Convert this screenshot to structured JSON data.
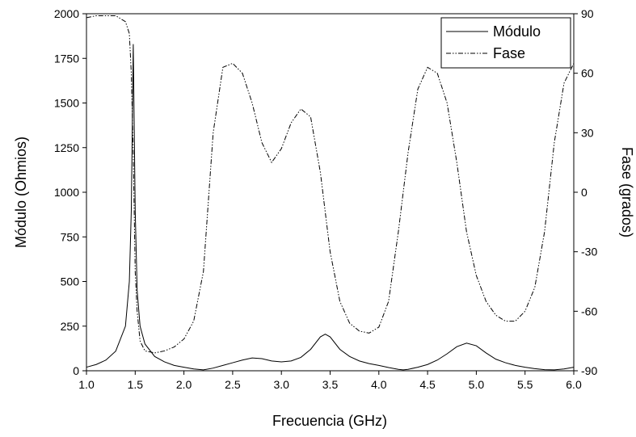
{
  "chart_data": {
    "type": "line",
    "x": [
      1.0,
      1.1,
      1.2,
      1.3,
      1.4,
      1.44,
      1.46,
      1.48,
      1.5,
      1.52,
      1.55,
      1.6,
      1.7,
      1.8,
      1.9,
      2.0,
      2.1,
      2.2,
      2.3,
      2.4,
      2.5,
      2.6,
      2.7,
      2.8,
      2.9,
      3.0,
      3.1,
      3.2,
      3.3,
      3.4,
      3.45,
      3.5,
      3.6,
      3.7,
      3.8,
      3.9,
      4.0,
      4.1,
      4.2,
      4.25,
      4.3,
      4.4,
      4.5,
      4.6,
      4.7,
      4.8,
      4.9,
      5.0,
      5.1,
      5.2,
      5.3,
      5.4,
      5.5,
      5.6,
      5.7,
      5.8,
      5.9,
      6.0
    ],
    "series": [
      {
        "name": "Módulo",
        "color": "#000000",
        "dash": "solid",
        "values": [
          20,
          35,
          60,
          110,
          250,
          500,
          900,
          1830,
          900,
          450,
          250,
          150,
          80,
          50,
          30,
          20,
          10,
          5,
          15,
          30,
          45,
          60,
          72,
          68,
          55,
          50,
          55,
          75,
          120,
          190,
          205,
          190,
          120,
          80,
          55,
          40,
          30,
          18,
          8,
          5,
          8,
          20,
          35,
          60,
          95,
          135,
          155,
          140,
          100,
          65,
          45,
          30,
          20,
          12,
          6,
          5,
          10,
          20
        ]
      },
      {
        "name": "Fase",
        "color": "#000000",
        "dash": "dashdotdot",
        "axis": "y2",
        "values": [
          88,
          89,
          89,
          89,
          86,
          80,
          60,
          20,
          -40,
          -60,
          -75,
          -80,
          -81,
          -80,
          -78,
          -74,
          -65,
          -40,
          30,
          63,
          65,
          60,
          45,
          25,
          15,
          22,
          35,
          42,
          38,
          10,
          -10,
          -30,
          -55,
          -66,
          -70,
          -71,
          -68,
          -55,
          -20,
          0,
          20,
          52,
          63,
          60,
          45,
          15,
          -20,
          -42,
          -55,
          -62,
          -65,
          -65,
          -60,
          -48,
          -20,
          25,
          55,
          65
        ]
      }
    ],
    "xlabel": "Frecuencia (GHz)",
    "ylabel": "Módulo (Ohmios)",
    "y2label": "Fase (grados)",
    "xlim": [
      1,
      6
    ],
    "xticks": [
      {
        "value": 1,
        "label": "1.0"
      },
      {
        "value": 1.5,
        "label": "1.5"
      },
      {
        "value": 2,
        "label": "2.0"
      },
      {
        "value": 2.5,
        "label": "2.5"
      },
      {
        "value": 3,
        "label": "3.0"
      },
      {
        "value": 3.5,
        "label": "3.5"
      },
      {
        "value": 4,
        "label": "4.0"
      },
      {
        "value": 4.5,
        "label": "4.5"
      },
      {
        "value": 5,
        "label": "5.0"
      },
      {
        "value": 5.5,
        "label": "5.5"
      },
      {
        "value": 6,
        "label": "6.0"
      }
    ],
    "ylim": [
      0,
      2000
    ],
    "yticks": [
      0,
      250,
      500,
      750,
      1000,
      1250,
      1500,
      1750,
      2000
    ],
    "y2lim": [
      -90,
      90
    ],
    "y2ticks": [
      -90,
      -60,
      -30,
      0,
      30,
      60,
      90
    ],
    "legend": "upper right",
    "grid": false
  }
}
